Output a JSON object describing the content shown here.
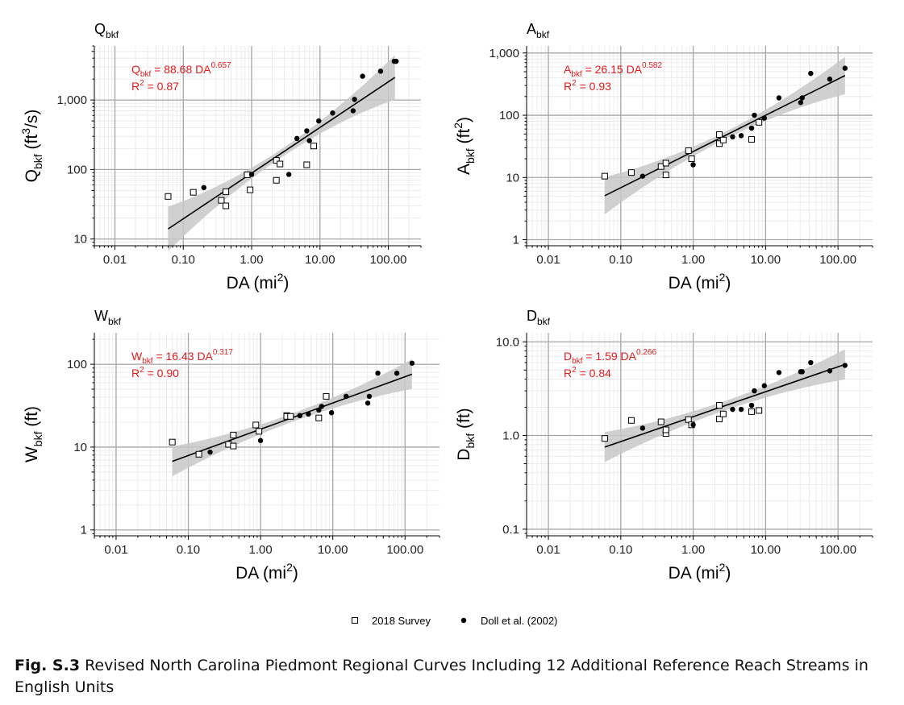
{
  "chart_data": [
    {
      "type": "scatter",
      "title": "Qbkf",
      "title_main": "Q",
      "title_sub": "bkf",
      "ylabel_main": "Q",
      "ylabel_sub": "bkf",
      "ylabel_unit_pre": " (ft",
      "ylabel_unit_sup": "3",
      "ylabel_unit_post": "/s)",
      "xlabel_main": "DA (mi",
      "xlabel_sup": "2",
      "xlabel_post": ")",
      "xlim": [
        0.005,
        300
      ],
      "ylim": [
        8,
        6000
      ],
      "xticks": [
        0.01,
        0.1,
        1,
        10,
        100
      ],
      "xtick_labels": [
        "0.01",
        "0.10",
        "1.00",
        "10.00",
        "100.00"
      ],
      "yticks": [
        10,
        100,
        1000
      ],
      "ytick_labels": [
        "10",
        "100",
        "1,000"
      ],
      "equation": {
        "lhs_main": "Q",
        "lhs_sub": "bkf",
        "mid": " = 88.68 DA",
        "exp": "0.657",
        "r2_pre": "R",
        "r2_sup": "2",
        "r2_post": " = 0.87"
      },
      "fit": {
        "a": 88.68,
        "b": 0.657,
        "x_range": [
          0.06,
          125
        ],
        "band": [
          0.06,
          0.32
        ]
      },
      "series": [
        {
          "name": "2018 Survey",
          "marker": "open-square",
          "x": [
            0.06,
            0.14,
            0.36,
            0.42,
            0.42,
            0.86,
            0.95,
            2.3,
            2.3,
            2.6,
            6.4,
            8.1
          ],
          "y": [
            41,
            47,
            36,
            30,
            48,
            84,
            51,
            135,
            70,
            120,
            117,
            218
          ]
        },
        {
          "name": "Doll et al. (2002)",
          "marker": "filled-circle",
          "x": [
            0.2,
            1.0,
            3.5,
            4.6,
            6.4,
            7.0,
            9.6,
            15.3,
            30.5,
            32,
            42,
            77,
            122,
            130
          ],
          "y": [
            55,
            85,
            85,
            280,
            360,
            260,
            500,
            650,
            700,
            1020,
            2200,
            2600,
            3600,
            3600
          ]
        }
      ]
    },
    {
      "type": "scatter",
      "title": "Abkf",
      "title_main": "A",
      "title_sub": "bkf",
      "ylabel_main": "A",
      "ylabel_sub": "bkf",
      "ylabel_unit_pre": " (ft",
      "ylabel_unit_sup": "2",
      "ylabel_unit_post": ")",
      "xlabel_main": "DA (mi",
      "xlabel_sup": "2",
      "xlabel_post": ")",
      "xlim": [
        0.005,
        300
      ],
      "ylim": [
        0.8,
        1300
      ],
      "xticks": [
        0.01,
        0.1,
        1,
        10,
        100
      ],
      "xtick_labels": [
        "0.01",
        "0.10",
        "1.00",
        "10.00",
        "100.00"
      ],
      "yticks": [
        1,
        10,
        100,
        1000
      ],
      "ytick_labels": [
        "1",
        "10",
        "100",
        "1,000"
      ],
      "equation": {
        "lhs_main": "A",
        "lhs_sub": "bkf",
        "mid": " = 26.15 DA",
        "exp": "0.582",
        "r2_pre": "R",
        "r2_sup": "2",
        "r2_post": " = 0.93"
      },
      "fit": {
        "a": 26.15,
        "b": 0.582,
        "x_range": [
          0.06,
          125
        ],
        "band": [
          0.06,
          0.3
        ]
      },
      "series": [
        {
          "name": "2018 Survey",
          "marker": "open-square",
          "x": [
            0.06,
            0.14,
            0.36,
            0.42,
            0.42,
            0.86,
            0.95,
            2.3,
            2.3,
            2.6,
            6.4,
            8.1
          ],
          "y": [
            10.5,
            12,
            15,
            11,
            17,
            27,
            20,
            49,
            35,
            40,
            41,
            77
          ]
        },
        {
          "name": "Doll et al. (2002)",
          "marker": "filled-circle",
          "x": [
            0.2,
            1.0,
            3.5,
            4.6,
            6.4,
            7.0,
            9.6,
            15.3,
            30.5,
            32,
            42,
            77,
            125
          ],
          "y": [
            10.5,
            16,
            45,
            47,
            62,
            100,
            90,
            190,
            160,
            190,
            470,
            380,
            570
          ]
        }
      ]
    },
    {
      "type": "scatter",
      "title": "Wbkf",
      "title_main": "W",
      "title_sub": "bkf",
      "ylabel_main": "W",
      "ylabel_sub": "bkf",
      "ylabel_unit_pre": " (ft)",
      "ylabel_unit_sup": "",
      "ylabel_unit_post": "",
      "xlabel_main": "DA (mi",
      "xlabel_sup": "2",
      "xlabel_post": ")",
      "xlim": [
        0.005,
        300
      ],
      "ylim": [
        0.85,
        240
      ],
      "xticks": [
        0.01,
        0.1,
        1,
        10,
        100
      ],
      "xtick_labels": [
        "0.01",
        "0.10",
        "1.00",
        "10.00",
        "100.00"
      ],
      "yticks": [
        1,
        10,
        100
      ],
      "ytick_labels": [
        "1",
        "10",
        "100"
      ],
      "equation": {
        "lhs_main": "W",
        "lhs_sub": "bkf",
        "mid": " = 16.43 DA",
        "exp": "0.317",
        "r2_pre": "R",
        "r2_sup": "2",
        "r2_post": " = 0.90"
      },
      "fit": {
        "a": 16.43,
        "b": 0.317,
        "x_range": [
          0.06,
          125
        ],
        "band": [
          0.05,
          0.18
        ]
      },
      "series": [
        {
          "name": "2018 Survey",
          "marker": "open-square",
          "x": [
            0.06,
            0.14,
            0.36,
            0.42,
            0.42,
            0.86,
            0.95,
            2.3,
            2.3,
            2.6,
            6.4,
            8.1
          ],
          "y": [
            11.5,
            8.2,
            10.8,
            10.3,
            14,
            18.5,
            15.5,
            24,
            23.5,
            23.5,
            22.5,
            41
          ]
        },
        {
          "name": "Doll et al. (2002)",
          "marker": "filled-circle",
          "x": [
            0.2,
            1.0,
            3.5,
            4.6,
            6.4,
            7.0,
            9.6,
            15.3,
            30.5,
            32,
            42,
            77,
            125
          ],
          "y": [
            8.7,
            12,
            24,
            25,
            28,
            31,
            26,
            41,
            34,
            41,
            78,
            78,
            103
          ]
        }
      ]
    },
    {
      "type": "scatter",
      "title": "Dbkf",
      "title_main": "D",
      "title_sub": "bkf",
      "ylabel_main": "D",
      "ylabel_sub": "bkf",
      "ylabel_unit_pre": " (ft)",
      "ylabel_unit_sup": "",
      "ylabel_unit_post": "",
      "xlabel_main": "DA (mi",
      "xlabel_sup": "2",
      "xlabel_post": ")",
      "xlim": [
        0.005,
        300
      ],
      "ylim": [
        0.085,
        12.5
      ],
      "xticks": [
        0.01,
        0.1,
        1,
        10,
        100
      ],
      "xtick_labels": [
        "0.01",
        "0.10",
        "1.00",
        "10.00",
        "100.00"
      ],
      "yticks": [
        0.1,
        1,
        10
      ],
      "ytick_labels": [
        "0.1",
        "1.0",
        "10.0"
      ],
      "equation": {
        "lhs_main": "D",
        "lhs_sub": "bkf",
        "mid": " = 1.59 DA",
        "exp": "0.266",
        "r2_pre": "R",
        "r2_sup": "2",
        "r2_post": " = 0.84"
      },
      "fit": {
        "a": 1.59,
        "b": 0.266,
        "x_range": [
          0.06,
          125
        ],
        "band": [
          0.05,
          0.16
        ]
      },
      "series": [
        {
          "name": "2018 Survey",
          "marker": "open-square",
          "x": [
            0.06,
            0.14,
            0.36,
            0.42,
            0.42,
            0.86,
            0.95,
            2.3,
            2.3,
            2.6,
            6.4,
            8.1
          ],
          "y": [
            0.93,
            1.45,
            1.4,
            1.05,
            1.15,
            1.48,
            1.3,
            2.1,
            1.5,
            1.7,
            1.8,
            1.85
          ]
        },
        {
          "name": "Doll et al. (2002)",
          "marker": "filled-circle",
          "x": [
            0.2,
            1.0,
            3.5,
            4.6,
            6.4,
            7.0,
            9.6,
            15.3,
            30.5,
            32,
            42,
            77,
            125
          ],
          "y": [
            1.2,
            1.3,
            1.9,
            1.9,
            2.1,
            3.0,
            3.4,
            4.7,
            4.8,
            4.8,
            6.0,
            4.9,
            5.6
          ]
        }
      ]
    }
  ],
  "legend": {
    "items": [
      {
        "marker": "open-square",
        "label": "2018 Survey"
      },
      {
        "marker": "filled-circle",
        "label": "Doll et al. (2002)"
      }
    ]
  },
  "caption": {
    "label": "Fig. S.3",
    "text": " Revised North Carolina Piedmont Regional Curves Including 12 Additional Reference Reach Streams in English Units"
  },
  "colors": {
    "equation": "#e31a1c",
    "grid_major": "#a6a6a6",
    "grid_minor": "#ececec",
    "band": "#c8c8c8",
    "fit_line": "#000000"
  }
}
